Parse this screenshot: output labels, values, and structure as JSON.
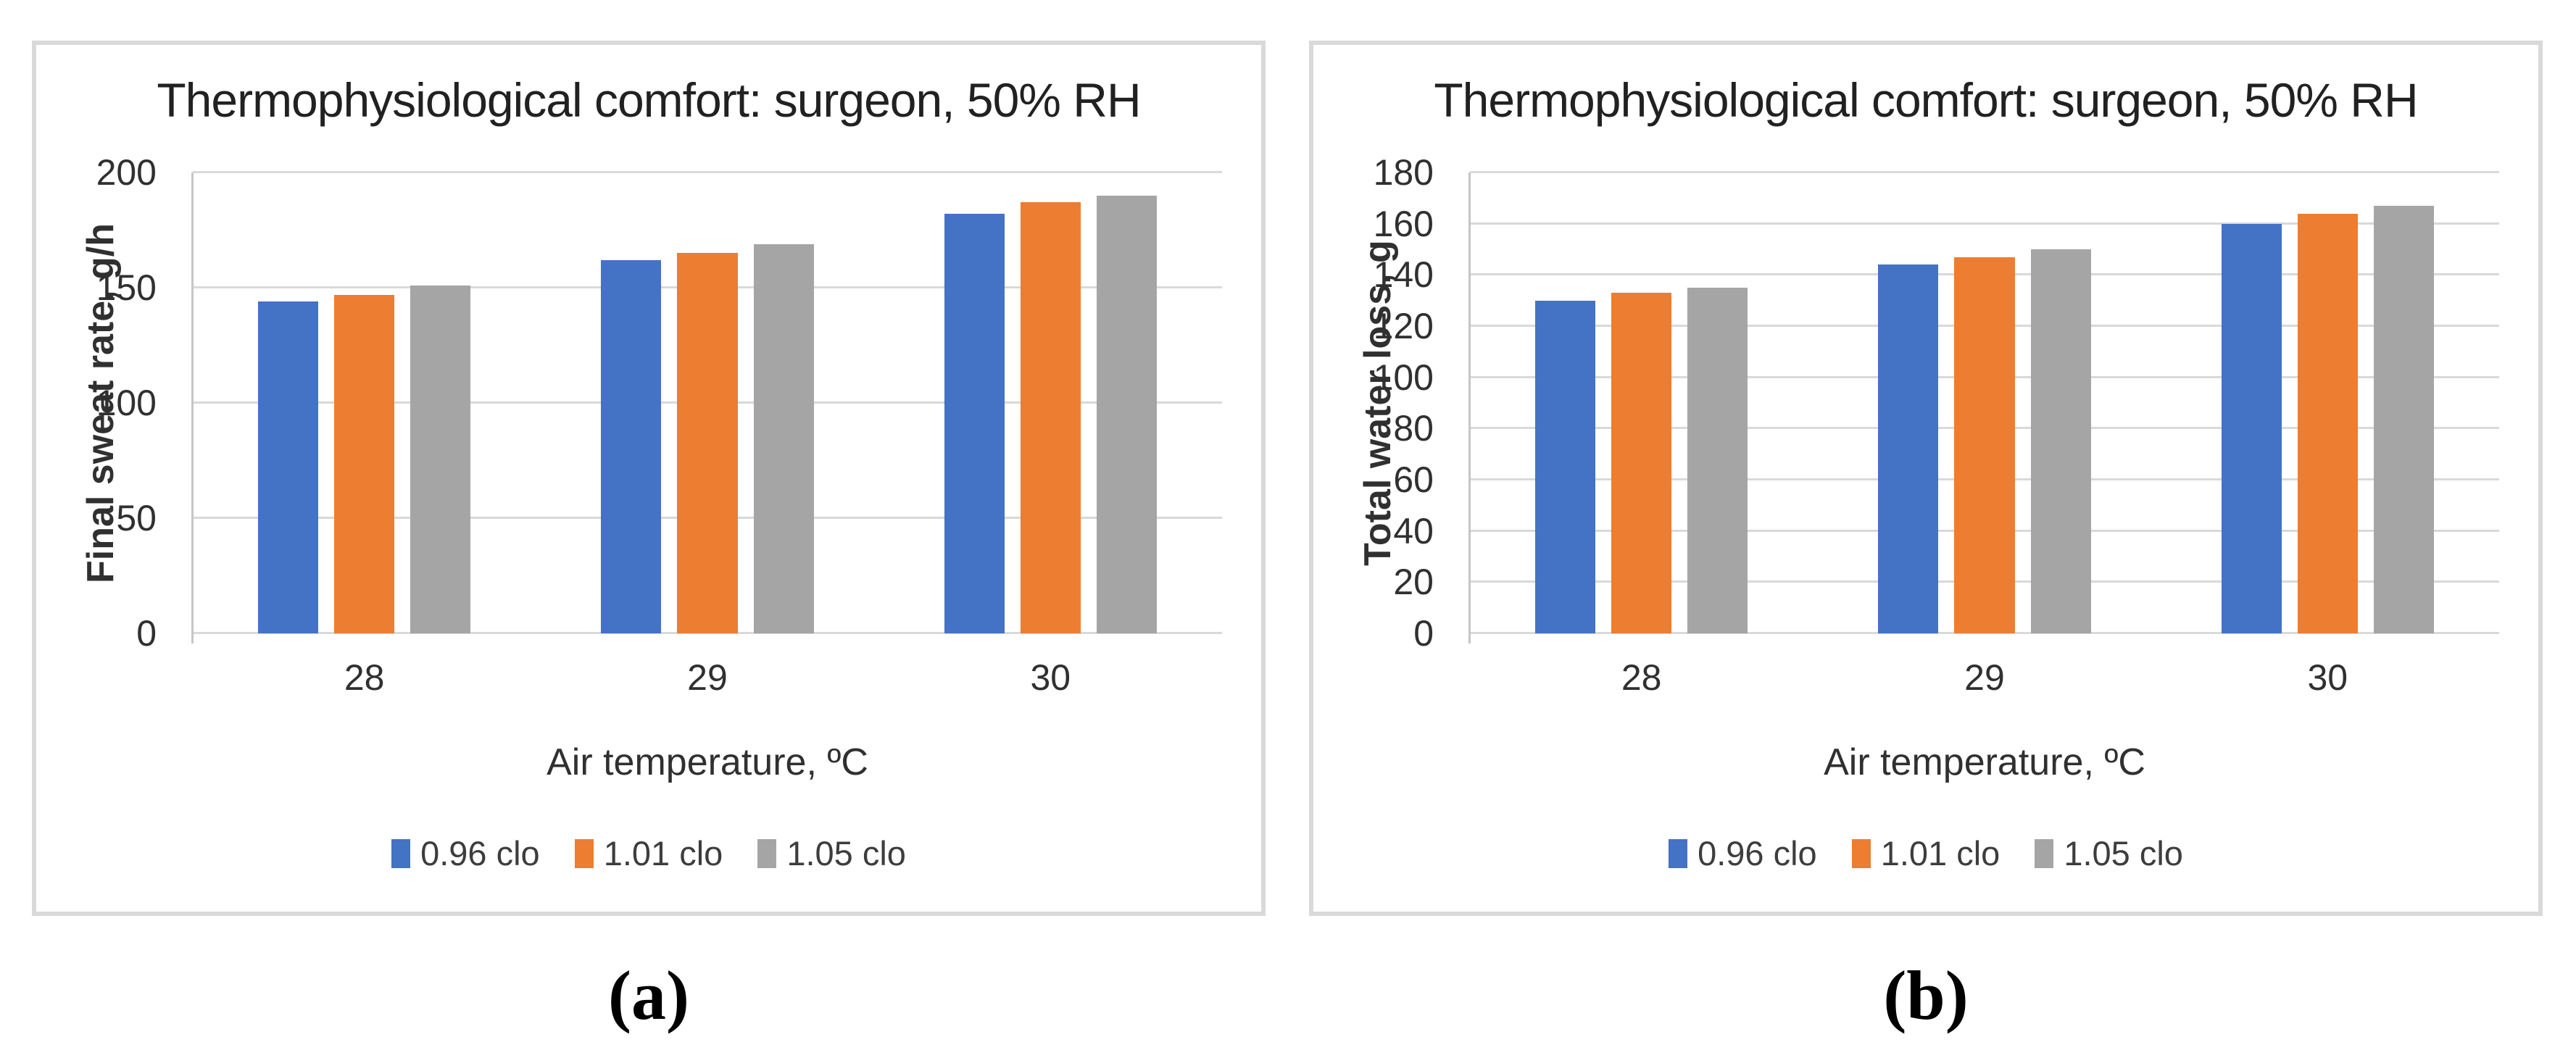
{
  "captions": [
    "(a)",
    "(b)"
  ],
  "colors": {
    "grid": "#d9d9d9",
    "axis_line": "#c6c6c6",
    "panel_border": "#d9d9d9",
    "title_text": "#212121",
    "tick_text": "#303030",
    "legend_text": "#3d3d3d"
  },
  "chart_data": [
    {
      "type": "bar",
      "title": "Thermophysiological comfort: surgeon, 50% RH",
      "xlabel": "Air temperature, ºC",
      "ylabel": "Final sweat rate, g/h",
      "categories": [
        "28",
        "29",
        "30"
      ],
      "series": [
        {
          "name": "0.96 clo",
          "color": "#4472c4",
          "values": [
            144,
            162,
            182
          ]
        },
        {
          "name": "1.01 clo",
          "color": "#ed7d31",
          "values": [
            147,
            165,
            187
          ]
        },
        {
          "name": "1.05 clo",
          "color": "#a5a5a5",
          "values": [
            151,
            169,
            190
          ]
        }
      ],
      "ylim": [
        0,
        200
      ],
      "ytick_step": 50,
      "grid": true,
      "legend_position": "bottom"
    },
    {
      "type": "bar",
      "title": "Thermophysiological comfort: surgeon, 50% RH",
      "xlabel": "Air temperature, ºC",
      "ylabel": "Total water loss, g",
      "categories": [
        "28",
        "29",
        "30"
      ],
      "series": [
        {
          "name": "0.96 clo",
          "color": "#4472c4",
          "values": [
            130,
            144,
            160
          ]
        },
        {
          "name": "1.01 clo",
          "color": "#ed7d31",
          "values": [
            133,
            147,
            164
          ]
        },
        {
          "name": "1.05 clo",
          "color": "#a5a5a5",
          "values": [
            135,
            150,
            167
          ]
        }
      ],
      "ylim": [
        0,
        180
      ],
      "ytick_step": 20,
      "grid": true,
      "legend_position": "bottom"
    }
  ]
}
